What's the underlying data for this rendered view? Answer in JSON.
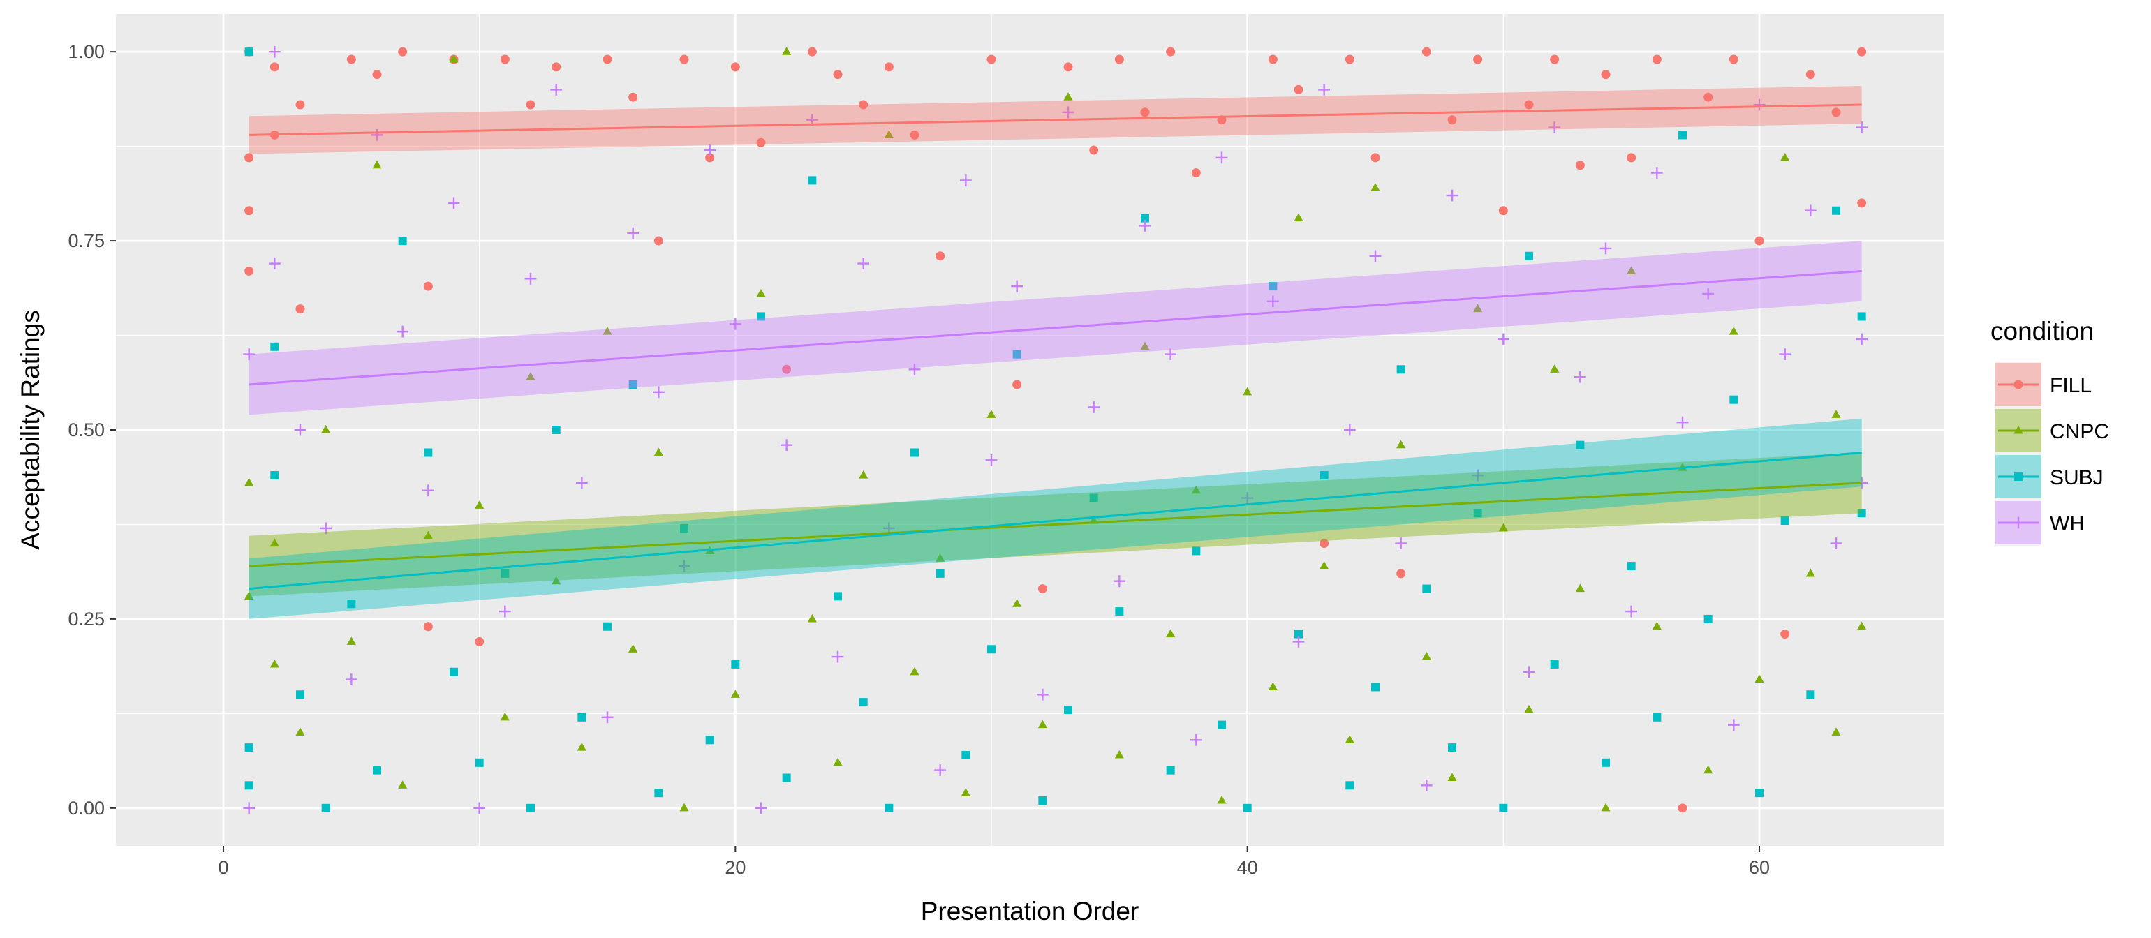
{
  "chart_data": {
    "type": "scatter",
    "xlabel": "Presentation Order",
    "ylabel": "Acceptability Ratings",
    "xlim": [
      -4.2,
      67.2
    ],
    "ylim": [
      -0.05,
      1.05
    ],
    "x_ticks": [
      0,
      20,
      40,
      60
    ],
    "y_ticks": [
      0.0,
      0.25,
      0.5,
      0.75,
      1.0
    ],
    "y_tick_labels": [
      "0.00",
      "0.25",
      "0.50",
      "0.75",
      "1.00"
    ],
    "grid": true,
    "legend": {
      "title": "condition",
      "placement": "right"
    },
    "x_range": [
      1,
      64
    ],
    "series": [
      {
        "name": "FILL",
        "color": "#F8766D",
        "shape": "circle",
        "trend": {
          "start": 0.89,
          "end": 0.93,
          "band_start": 0.025,
          "band_end": 0.025
        },
        "sample_points": [
          [
            1,
            1.0
          ],
          [
            1,
            0.86
          ],
          [
            1,
            0.79
          ],
          [
            1,
            0.71
          ],
          [
            2,
            0.98
          ],
          [
            2,
            0.89
          ],
          [
            3,
            0.66
          ],
          [
            3,
            0.93
          ],
          [
            5,
            0.99
          ],
          [
            6,
            0.97
          ],
          [
            7,
            1.0
          ],
          [
            8,
            0.69
          ],
          [
            8,
            0.24
          ],
          [
            9,
            0.99
          ],
          [
            10,
            0.22
          ],
          [
            11,
            0.99
          ],
          [
            12,
            0.93
          ],
          [
            13,
            0.98
          ],
          [
            15,
            0.99
          ],
          [
            16,
            0.94
          ],
          [
            17,
            0.75
          ],
          [
            18,
            0.99
          ],
          [
            19,
            0.86
          ],
          [
            20,
            0.98
          ],
          [
            21,
            0.88
          ],
          [
            22,
            0.58
          ],
          [
            23,
            1.0
          ],
          [
            24,
            0.97
          ],
          [
            25,
            0.93
          ],
          [
            26,
            0.98
          ],
          [
            27,
            0.89
          ],
          [
            28,
            0.73
          ],
          [
            30,
            0.99
          ],
          [
            31,
            0.56
          ],
          [
            32,
            0.29
          ],
          [
            33,
            0.98
          ],
          [
            34,
            0.87
          ],
          [
            35,
            0.99
          ],
          [
            36,
            0.92
          ],
          [
            37,
            1.0
          ],
          [
            38,
            0.84
          ],
          [
            39,
            0.91
          ],
          [
            41,
            0.99
          ],
          [
            42,
            0.95
          ],
          [
            43,
            0.35
          ],
          [
            44,
            0.99
          ],
          [
            45,
            0.86
          ],
          [
            46,
            0.31
          ],
          [
            47,
            1.0
          ],
          [
            48,
            0.91
          ],
          [
            49,
            0.99
          ],
          [
            50,
            0.79
          ],
          [
            51,
            0.93
          ],
          [
            52,
            0.99
          ],
          [
            53,
            0.85
          ],
          [
            54,
            0.97
          ],
          [
            55,
            0.86
          ],
          [
            56,
            0.99
          ],
          [
            57,
            0.0
          ],
          [
            58,
            0.94
          ],
          [
            59,
            0.99
          ],
          [
            60,
            0.75
          ],
          [
            61,
            0.23
          ],
          [
            62,
            0.97
          ],
          [
            63,
            0.92
          ],
          [
            64,
            0.8
          ],
          [
            64,
            1.0
          ]
        ]
      },
      {
        "name": "CNPC",
        "color": "#7CAE00",
        "shape": "triangle",
        "trend": {
          "start": 0.32,
          "end": 0.43,
          "band_start": 0.04,
          "band_end": 0.04
        },
        "sample_points": [
          [
            1,
            0.43
          ],
          [
            1,
            0.28
          ],
          [
            2,
            0.35
          ],
          [
            2,
            0.19
          ],
          [
            3,
            0.1
          ],
          [
            4,
            0.5
          ],
          [
            5,
            0.22
          ],
          [
            6,
            0.85
          ],
          [
            7,
            0.03
          ],
          [
            8,
            0.36
          ],
          [
            9,
            0.99
          ],
          [
            10,
            0.4
          ],
          [
            11,
            0.12
          ],
          [
            12,
            0.57
          ],
          [
            13,
            0.3
          ],
          [
            14,
            0.08
          ],
          [
            15,
            0.63
          ],
          [
            16,
            0.21
          ],
          [
            17,
            0.47
          ],
          [
            18,
            0.0
          ],
          [
            19,
            0.34
          ],
          [
            20,
            0.15
          ],
          [
            21,
            0.68
          ],
          [
            22,
            1.0
          ],
          [
            23,
            0.25
          ],
          [
            24,
            0.06
          ],
          [
            25,
            0.44
          ],
          [
            26,
            0.89
          ],
          [
            27,
            0.18
          ],
          [
            28,
            0.33
          ],
          [
            29,
            0.02
          ],
          [
            30,
            0.52
          ],
          [
            31,
            0.27
          ],
          [
            32,
            0.11
          ],
          [
            33,
            0.94
          ],
          [
            34,
            0.38
          ],
          [
            35,
            0.07
          ],
          [
            36,
            0.61
          ],
          [
            37,
            0.23
          ],
          [
            38,
            0.42
          ],
          [
            39,
            0.01
          ],
          [
            40,
            0.55
          ],
          [
            41,
            0.16
          ],
          [
            42,
            0.78
          ],
          [
            43,
            0.32
          ],
          [
            44,
            0.09
          ],
          [
            45,
            0.82
          ],
          [
            46,
            0.48
          ],
          [
            47,
            0.2
          ],
          [
            48,
            0.04
          ],
          [
            49,
            0.66
          ],
          [
            50,
            0.37
          ],
          [
            51,
            0.13
          ],
          [
            52,
            0.58
          ],
          [
            53,
            0.29
          ],
          [
            54,
            0.0
          ],
          [
            55,
            0.71
          ],
          [
            56,
            0.24
          ],
          [
            57,
            0.45
          ],
          [
            58,
            0.05
          ],
          [
            59,
            0.63
          ],
          [
            60,
            0.17
          ],
          [
            61,
            0.86
          ],
          [
            62,
            0.31
          ],
          [
            63,
            0.1
          ],
          [
            63,
            0.52
          ],
          [
            64,
            0.24
          ]
        ]
      },
      {
        "name": "SUBJ",
        "color": "#00BFC4",
        "shape": "square",
        "trend": {
          "start": 0.29,
          "end": 0.47,
          "band_start": 0.04,
          "band_end": 0.045
        },
        "sample_points": [
          [
            1,
            1.0
          ],
          [
            1,
            0.08
          ],
          [
            1,
            0.03
          ],
          [
            2,
            0.61
          ],
          [
            2,
            0.44
          ],
          [
            3,
            0.15
          ],
          [
            4,
            0.0
          ],
          [
            5,
            0.27
          ],
          [
            6,
            0.05
          ],
          [
            7,
            0.75
          ],
          [
            8,
            0.47
          ],
          [
            9,
            0.18
          ],
          [
            10,
            0.06
          ],
          [
            11,
            0.31
          ],
          [
            12,
            0.0
          ],
          [
            13,
            0.5
          ],
          [
            14,
            0.12
          ],
          [
            15,
            0.24
          ],
          [
            16,
            0.56
          ],
          [
            17,
            0.02
          ],
          [
            18,
            0.37
          ],
          [
            19,
            0.09
          ],
          [
            20,
            0.19
          ],
          [
            21,
            0.65
          ],
          [
            22,
            0.04
          ],
          [
            23,
            0.83
          ],
          [
            24,
            0.28
          ],
          [
            25,
            0.14
          ],
          [
            26,
            0.0
          ],
          [
            27,
            0.47
          ],
          [
            28,
            0.31
          ],
          [
            29,
            0.07
          ],
          [
            30,
            0.21
          ],
          [
            31,
            0.6
          ],
          [
            32,
            0.01
          ],
          [
            33,
            0.13
          ],
          [
            34,
            0.41
          ],
          [
            35,
            0.26
          ],
          [
            36,
            0.78
          ],
          [
            37,
            0.05
          ],
          [
            38,
            0.34
          ],
          [
            39,
            0.11
          ],
          [
            40,
            0.0
          ],
          [
            41,
            0.69
          ],
          [
            42,
            0.23
          ],
          [
            43,
            0.44
          ],
          [
            44,
            0.03
          ],
          [
            45,
            0.16
          ],
          [
            46,
            0.58
          ],
          [
            47,
            0.29
          ],
          [
            48,
            0.08
          ],
          [
            49,
            0.39
          ],
          [
            50,
            0.0
          ],
          [
            51,
            0.73
          ],
          [
            52,
            0.19
          ],
          [
            53,
            0.48
          ],
          [
            54,
            0.06
          ],
          [
            55,
            0.32
          ],
          [
            56,
            0.12
          ],
          [
            57,
            0.89
          ],
          [
            58,
            0.25
          ],
          [
            59,
            0.54
          ],
          [
            60,
            0.02
          ],
          [
            61,
            0.38
          ],
          [
            62,
            0.15
          ],
          [
            63,
            0.79
          ],
          [
            64,
            0.39
          ],
          [
            64,
            0.65
          ]
        ]
      },
      {
        "name": "WH",
        "color": "#C77CFF",
        "shape": "cross",
        "trend": {
          "start": 0.56,
          "end": 0.71,
          "band_start": 0.04,
          "band_end": 0.04
        },
        "sample_points": [
          [
            1,
            0.6
          ],
          [
            1,
            0.0
          ],
          [
            2,
            1.0
          ],
          [
            2,
            0.72
          ],
          [
            3,
            0.5
          ],
          [
            4,
            0.37
          ],
          [
            5,
            0.17
          ],
          [
            6,
            0.89
          ],
          [
            7,
            0.63
          ],
          [
            8,
            0.42
          ],
          [
            9,
            0.8
          ],
          [
            10,
            0.0
          ],
          [
            11,
            0.26
          ],
          [
            12,
            0.7
          ],
          [
            13,
            0.95
          ],
          [
            14,
            0.43
          ],
          [
            15,
            0.12
          ],
          [
            16,
            0.76
          ],
          [
            17,
            0.55
          ],
          [
            18,
            0.32
          ],
          [
            19,
            0.87
          ],
          [
            20,
            0.64
          ],
          [
            21,
            0.0
          ],
          [
            22,
            0.48
          ],
          [
            23,
            0.91
          ],
          [
            24,
            0.2
          ],
          [
            25,
            0.72
          ],
          [
            26,
            0.37
          ],
          [
            27,
            0.58
          ],
          [
            28,
            0.05
          ],
          [
            29,
            0.83
          ],
          [
            30,
            0.46
          ],
          [
            31,
            0.69
          ],
          [
            32,
            0.15
          ],
          [
            33,
            0.92
          ],
          [
            34,
            0.53
          ],
          [
            35,
            0.3
          ],
          [
            36,
            0.77
          ],
          [
            37,
            0.6
          ],
          [
            38,
            0.09
          ],
          [
            39,
            0.86
          ],
          [
            40,
            0.41
          ],
          [
            41,
            0.67
          ],
          [
            42,
            0.22
          ],
          [
            43,
            0.95
          ],
          [
            44,
            0.5
          ],
          [
            45,
            0.73
          ],
          [
            46,
            0.35
          ],
          [
            47,
            0.03
          ],
          [
            48,
            0.81
          ],
          [
            49,
            0.44
          ],
          [
            50,
            0.62
          ],
          [
            51,
            0.18
          ],
          [
            52,
            0.9
          ],
          [
            53,
            0.57
          ],
          [
            54,
            0.74
          ],
          [
            55,
            0.26
          ],
          [
            56,
            0.84
          ],
          [
            57,
            0.51
          ],
          [
            58,
            0.68
          ],
          [
            59,
            0.11
          ],
          [
            60,
            0.93
          ],
          [
            61,
            0.6
          ],
          [
            62,
            0.79
          ],
          [
            63,
            0.35
          ],
          [
            64,
            0.9
          ],
          [
            64,
            0.62
          ],
          [
            64,
            0.43
          ]
        ]
      }
    ]
  }
}
